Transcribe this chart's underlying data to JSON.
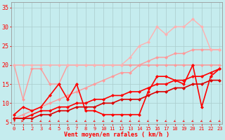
{
  "bg_color": "#c5ecee",
  "grid_color": "#aacccc",
  "xlabel": "Vent moyen/en rafales ( km/h )",
  "xlim": [
    -0.3,
    23.3
  ],
  "ylim": [
    4.5,
    36.5
  ],
  "yticks": [
    5,
    10,
    15,
    20,
    25,
    30,
    35
  ],
  "xticks": [
    0,
    1,
    2,
    3,
    4,
    5,
    6,
    7,
    8,
    9,
    10,
    11,
    12,
    13,
    14,
    15,
    16,
    17,
    18,
    19,
    20,
    21,
    22,
    23
  ],
  "lines": [
    {
      "x": [
        0,
        1,
        2,
        3,
        4,
        5,
        6,
        7,
        8,
        9,
        10,
        11,
        12,
        13,
        14,
        15,
        16,
        17,
        18,
        19,
        20,
        21,
        22,
        23
      ],
      "y": [
        20,
        11,
        19,
        19,
        15,
        15,
        20,
        20,
        20,
        20,
        20,
        20,
        20,
        20,
        20,
        20,
        20,
        20,
        20,
        20,
        20,
        20,
        20,
        20
      ],
      "color": "#ff9999",
      "lw": 1.0,
      "ms": 2.5,
      "zorder": 2
    },
    {
      "x": [
        0,
        1,
        2,
        3,
        4,
        5,
        6,
        7,
        8,
        9,
        10,
        11,
        12,
        13,
        14,
        15,
        16,
        17,
        18,
        19,
        20,
        21,
        22,
        23
      ],
      "y": [
        6,
        7,
        8,
        9,
        10,
        11,
        12,
        13,
        14,
        15,
        16,
        17,
        18,
        18,
        20,
        21,
        22,
        22,
        23,
        23,
        24,
        24,
        24,
        24
      ],
      "color": "#ff9999",
      "lw": 1.0,
      "ms": 2.5,
      "zorder": 2
    },
    {
      "x": [
        0,
        1,
        2,
        3,
        4,
        5,
        6,
        7,
        8,
        9,
        10,
        11,
        12,
        13,
        14,
        15,
        16,
        17,
        18,
        19,
        20,
        21,
        22,
        23
      ],
      "y": [
        20,
        20,
        20,
        20,
        20,
        20,
        20,
        20,
        20,
        20,
        20,
        20,
        20,
        22,
        25,
        26,
        30,
        28,
        30,
        30,
        32,
        30,
        24,
        24
      ],
      "color": "#ffb0b0",
      "lw": 1.0,
      "ms": 2.5,
      "zorder": 2
    },
    {
      "x": [
        0,
        1,
        2,
        3,
        4,
        5,
        6,
        7,
        8,
        9,
        10,
        11,
        12,
        13,
        14,
        15,
        16,
        17,
        18,
        19,
        20,
        21,
        22,
        23
      ],
      "y": [
        7,
        9,
        8,
        9,
        12,
        15,
        11,
        15,
        8,
        8,
        7,
        7,
        7,
        7,
        7,
        13,
        17,
        17,
        16,
        15,
        20,
        9,
        17,
        19
      ],
      "color": "#ff0000",
      "lw": 1.2,
      "ms": 2.5,
      "zorder": 3
    },
    {
      "x": [
        0,
        1,
        2,
        3,
        4,
        5,
        6,
        7,
        8,
        9,
        10,
        11,
        12,
        13,
        14,
        15,
        16,
        17,
        18,
        19,
        20,
        21,
        22,
        23
      ],
      "y": [
        6,
        6,
        7,
        8,
        8,
        9,
        9,
        10,
        10,
        11,
        11,
        12,
        12,
        13,
        13,
        14,
        15,
        15,
        16,
        16,
        17,
        17,
        18,
        19
      ],
      "color": "#ff0000",
      "lw": 1.2,
      "ms": 2.5,
      "zorder": 3
    },
    {
      "x": [
        0,
        1,
        2,
        3,
        4,
        5,
        6,
        7,
        8,
        9,
        10,
        11,
        12,
        13,
        14,
        15,
        16,
        17,
        18,
        19,
        20,
        21,
        22,
        23
      ],
      "y": [
        6,
        6,
        6,
        7,
        7,
        8,
        8,
        9,
        9,
        9,
        10,
        10,
        11,
        11,
        11,
        12,
        13,
        13,
        14,
        14,
        15,
        15,
        16,
        16
      ],
      "color": "#dd0000",
      "lw": 1.2,
      "ms": 2.5,
      "zorder": 3
    }
  ],
  "arrow_angles": [
    45,
    90,
    220,
    220,
    220,
    220,
    220,
    220,
    220,
    220,
    220,
    220,
    220,
    220,
    220,
    220,
    185,
    220,
    220,
    220,
    220,
    220,
    220,
    220
  ]
}
